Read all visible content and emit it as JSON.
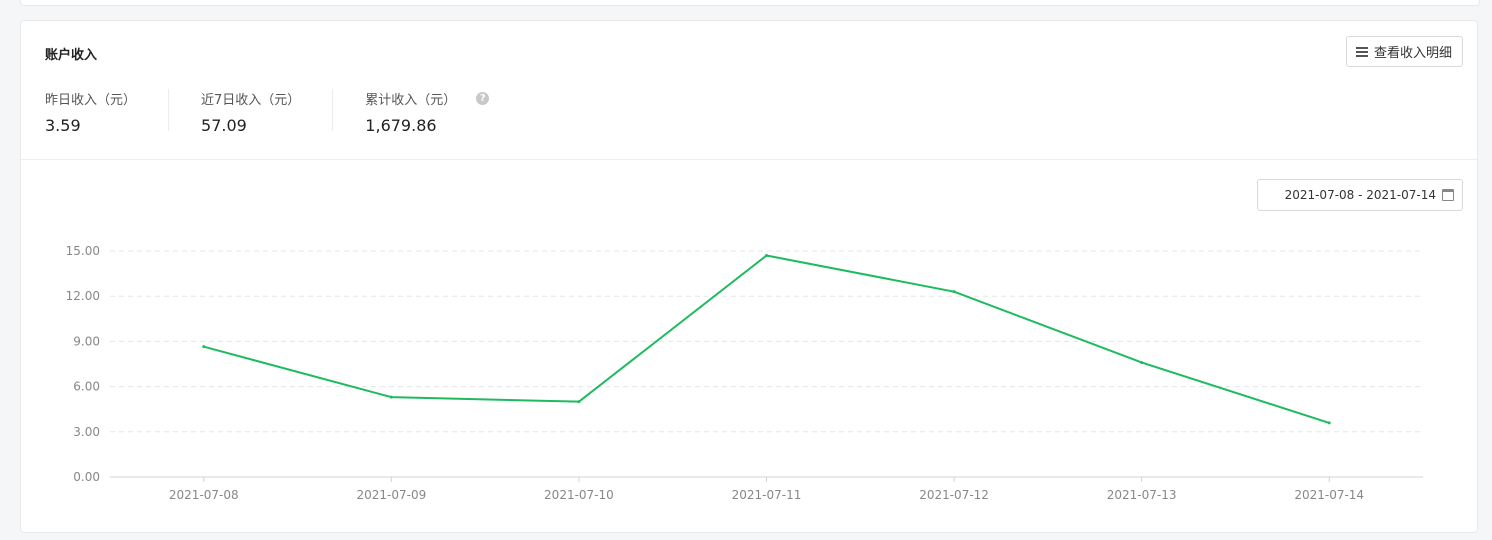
{
  "card": {
    "title": "账户收入",
    "detail_button": "查看收入明细"
  },
  "stats": [
    {
      "label": "昨日收入（元）",
      "value": "3.59"
    },
    {
      "label": "近7日收入（元）",
      "value": "57.09"
    },
    {
      "label": "累计收入（元）",
      "value": "1,679.86",
      "help": "?"
    }
  ],
  "date_range": "2021-07-08 - 2021-07-14",
  "icons": {
    "menu": "menu-icon",
    "help": "help-icon",
    "calendar": "calendar-icon"
  },
  "colors": {
    "line": "#1ebb5e",
    "grid": "#e3e5e8"
  },
  "chart_data": {
    "type": "line",
    "categories": [
      "2021-07-08",
      "2021-07-09",
      "2021-07-10",
      "2021-07-11",
      "2021-07-12",
      "2021-07-13",
      "2021-07-14"
    ],
    "values": [
      8.65,
      5.3,
      5.0,
      14.7,
      12.3,
      7.6,
      3.59
    ],
    "yticks": [
      "0.00",
      "3.00",
      "6.00",
      "9.00",
      "12.00",
      "15.00"
    ],
    "ylim": [
      0,
      15
    ],
    "grid": true
  }
}
